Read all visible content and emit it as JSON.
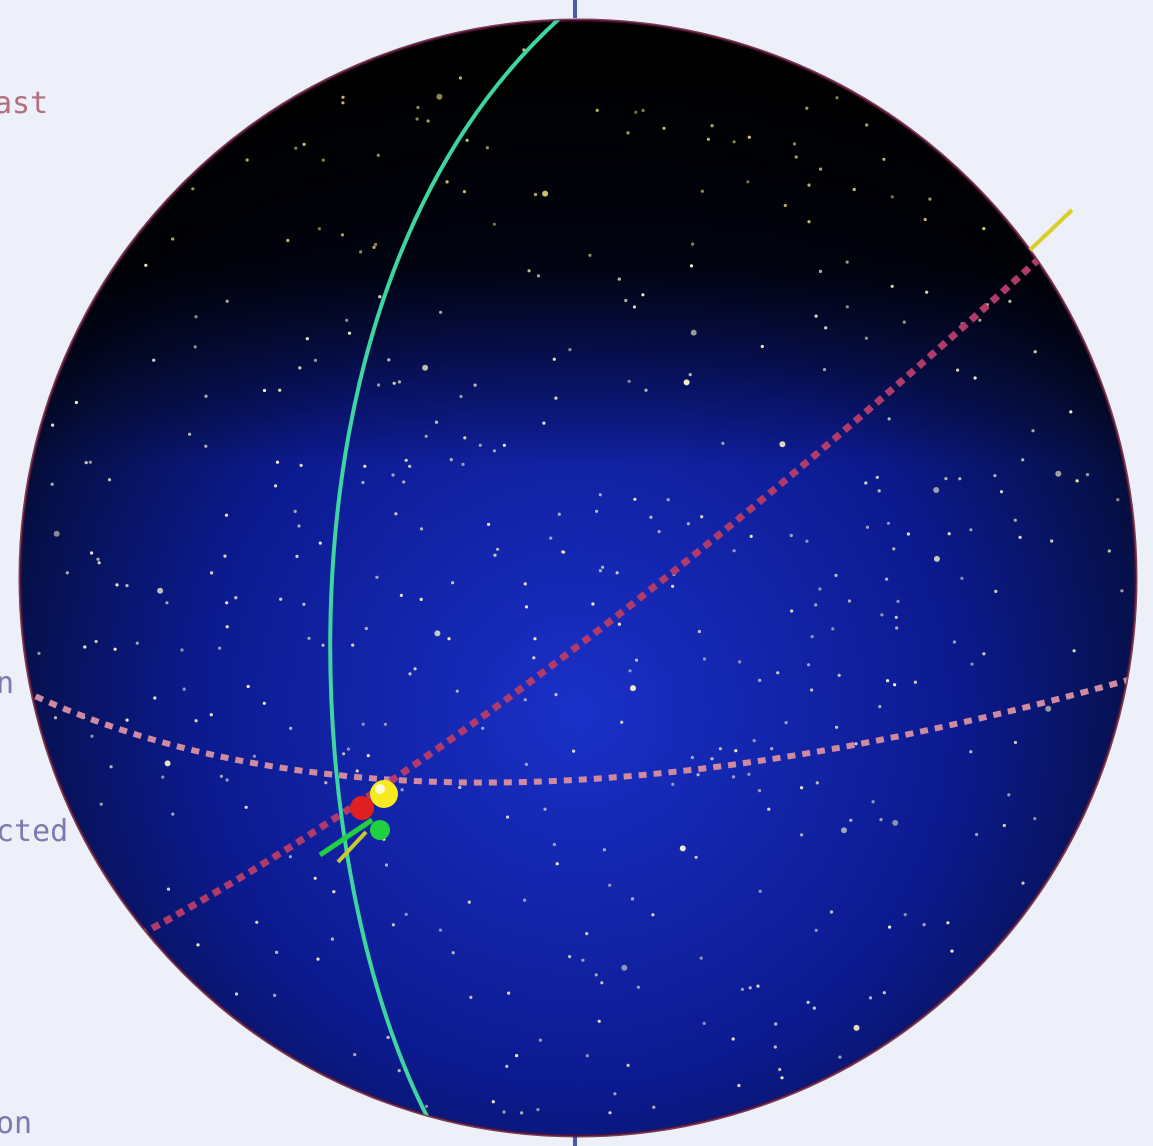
{
  "side_labels": {
    "top": "",
    "ast": "ast",
    "n": "n",
    "cted": "cted",
    "on": "on"
  },
  "icons": {
    "axis_marker": "axis-tick-icon"
  },
  "colors": {
    "page_background": "#eef0f9",
    "sphere_blue": "#0c1a8f",
    "sphere_dark": "#000000",
    "meridian_green": "#3ed6a0",
    "ecliptic_dotted": "#b03a6a",
    "equator_dotted": "#d08aa0",
    "axis_blue": "#4e5aa8",
    "sun_yellow": "#f7ea1e",
    "red_marker": "#e02020",
    "green_marker": "#20d040",
    "star_color": "#f4f0c8"
  }
}
